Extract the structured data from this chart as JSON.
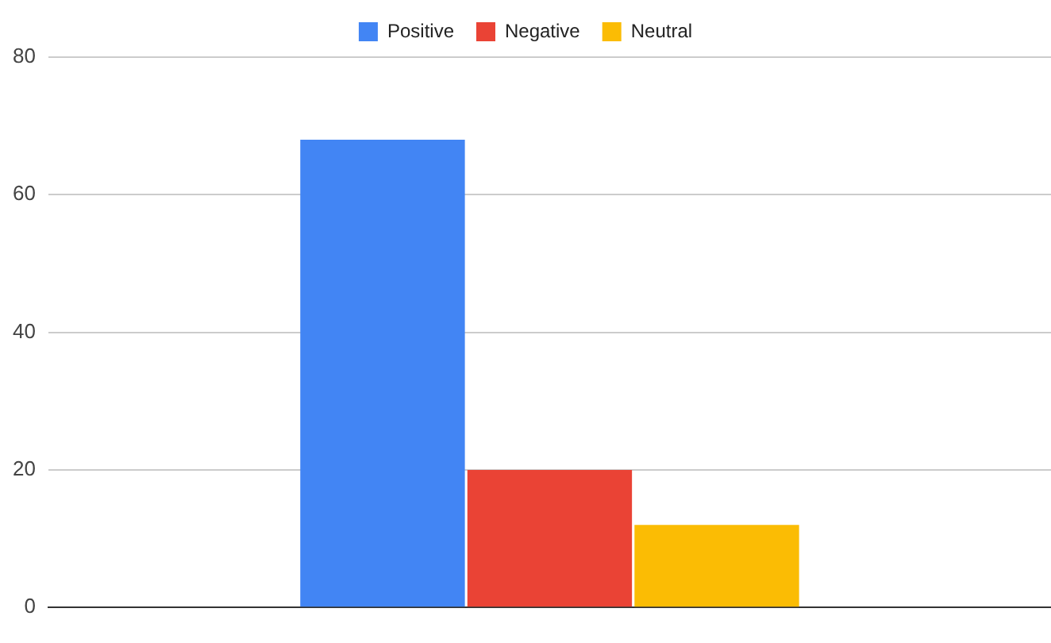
{
  "chart_data": {
    "type": "bar",
    "categories": [
      null
    ],
    "series": [
      {
        "name": "Positive",
        "color": "#4285f4",
        "values": [
          68
        ]
      },
      {
        "name": "Negative",
        "color": "#ea4335",
        "values": [
          20
        ]
      },
      {
        "name": "Neutral",
        "color": "#fbbc04",
        "values": [
          12
        ]
      }
    ],
    "ylim": [
      0,
      80
    ],
    "yticks": [
      0,
      20,
      40,
      60,
      80
    ],
    "grid": "y",
    "legend": "top"
  }
}
